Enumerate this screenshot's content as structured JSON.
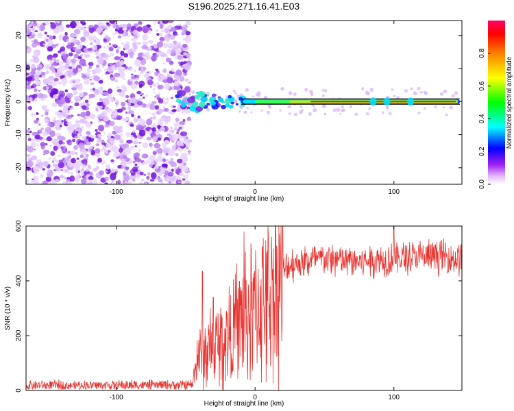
{
  "title": "S196.2025.271.16.41.E03",
  "colors": {
    "snr_line": "#e8322e",
    "spectro_dots": "#8a2be2",
    "frame": "#000000"
  },
  "chart_data": [
    {
      "type": "heatmap",
      "name": "spectrogram",
      "xlabel": "Height of straight line (km)",
      "ylabel": "Frequency (Hz)",
      "xlim": [
        -165,
        149
      ],
      "ylim": [
        -25,
        24.5
      ],
      "xticks": [
        -100,
        0,
        100
      ],
      "yticks": [
        -20,
        -10,
        0,
        10,
        20
      ],
      "xtick_labels": [
        "-100",
        "0",
        "100"
      ],
      "ytick_labels": [
        "-20",
        "-10",
        "0",
        "10",
        "20"
      ],
      "noise_region_x": [
        -165,
        -55
      ],
      "carrier_freq": 0,
      "carrier_start_x": -10,
      "colorbar": {
        "label": "Normalized spectral amplitude",
        "range": [
          0,
          1
        ],
        "ticks": [
          0.0,
          0.2,
          0.4,
          0.6,
          0.8
        ],
        "tick_labels": [
          "0.0",
          "0.2",
          "0.4",
          "0.6",
          "0.8"
        ]
      }
    },
    {
      "type": "line",
      "name": "snr",
      "xlabel": "Height of straight line (km)",
      "ylabel": "SNR (10 * v/v)",
      "xlim": [
        -165,
        149
      ],
      "ylim": [
        0,
        600
      ],
      "xticks": [
        -100,
        0,
        100
      ],
      "yticks": [
        0,
        200,
        400,
        600
      ],
      "xtick_labels": [
        "-100",
        "0",
        "100"
      ],
      "ytick_labels": [
        "0",
        "200",
        "400",
        "600"
      ],
      "series": [
        {
          "name": "SNR",
          "envelope_x": [
            -165,
            -45,
            -42,
            -35,
            -25,
            -15,
            -5,
            5,
            15,
            20,
            25,
            35,
            50,
            70,
            100,
            130,
            149
          ],
          "envelope_y": [
            18,
            20,
            120,
            140,
            170,
            230,
            270,
            330,
            400,
            430,
            460,
            470,
            480,
            470,
            480,
            490,
            480
          ],
          "spikes": [
            {
              "x": -38,
              "y": 435
            },
            {
              "x": -30,
              "y": 340
            },
            {
              "x": -8,
              "y": 580
            },
            {
              "x": 100,
              "y": 600
            }
          ]
        }
      ]
    }
  ]
}
